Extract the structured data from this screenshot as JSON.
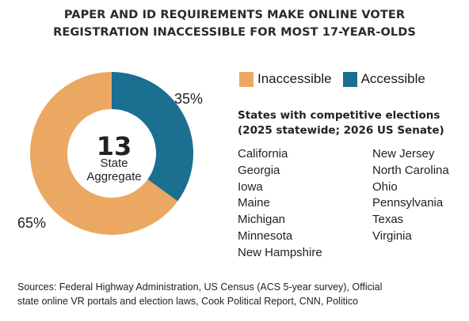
{
  "chart_data": {
    "type": "pie",
    "title_line1": "PAPER AND ID REQUIREMENTS MAKE ONLINE VOTER",
    "title_line2": "REGISTRATION INACCESSIBLE FOR MOST 17-YEAR-OLDS",
    "slices": [
      {
        "label": "Accessible",
        "value": 35,
        "display": "35%",
        "color": "#1b6f91"
      },
      {
        "label": "Inaccessible",
        "value": 65,
        "display": "65%",
        "color": "#eba862"
      }
    ],
    "center_number": "13",
    "center_label_line1": "State",
    "center_label_line2": "Aggregate",
    "legend": [
      {
        "label": "Inaccessible",
        "color": "#eba862"
      },
      {
        "label": "Accessible",
        "color": "#1b6f91"
      }
    ],
    "legend_placement": "right"
  },
  "states": {
    "heading_line1": "States with competitive elections",
    "heading_line2": "(2025 statewide; 2026 US Senate)",
    "column1": [
      "California",
      "Georgia",
      "Iowa",
      "Maine",
      "Michigan",
      "Minnesota",
      "New Hampshire"
    ],
    "column2": [
      "New Jersey",
      "North Carolina",
      "Ohio",
      "Pennsylvania",
      "Texas",
      "Virginia"
    ]
  },
  "sources": {
    "line1": "Sources: Federal Highway Administration, US Census (ACS 5-year survey), Official",
    "line2": "state online VR portals and election laws, Cook Political Report, CNN, Politico"
  }
}
